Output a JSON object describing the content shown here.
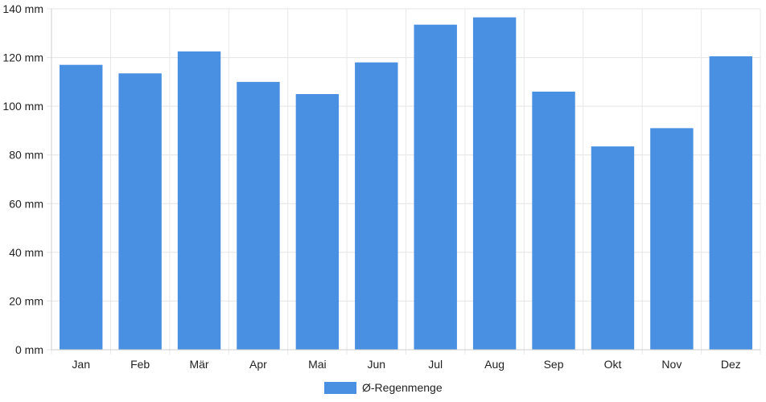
{
  "chart_data": {
    "type": "bar",
    "categories": [
      "Jan",
      "Feb",
      "Mär",
      "Apr",
      "Mai",
      "Jun",
      "Jul",
      "Aug",
      "Sep",
      "Okt",
      "Nov",
      "Dez"
    ],
    "series": [
      {
        "name": "Ø-Regenmenge",
        "values": [
          117,
          113.5,
          122.5,
          110,
          105,
          118,
          133.5,
          136.5,
          106,
          83.5,
          91,
          120.5
        ],
        "color": "#4a90e2"
      }
    ],
    "yticks": [
      "0 mm",
      "20 mm",
      "40 mm",
      "60 mm",
      "80 mm",
      "100 mm",
      "120 mm",
      "140 mm"
    ],
    "ytick_values": [
      0,
      20,
      40,
      60,
      80,
      100,
      120,
      140
    ],
    "ylim": [
      0,
      140
    ],
    "y_unit": "mm",
    "grid": true,
    "legend_position": "bottom-center"
  }
}
